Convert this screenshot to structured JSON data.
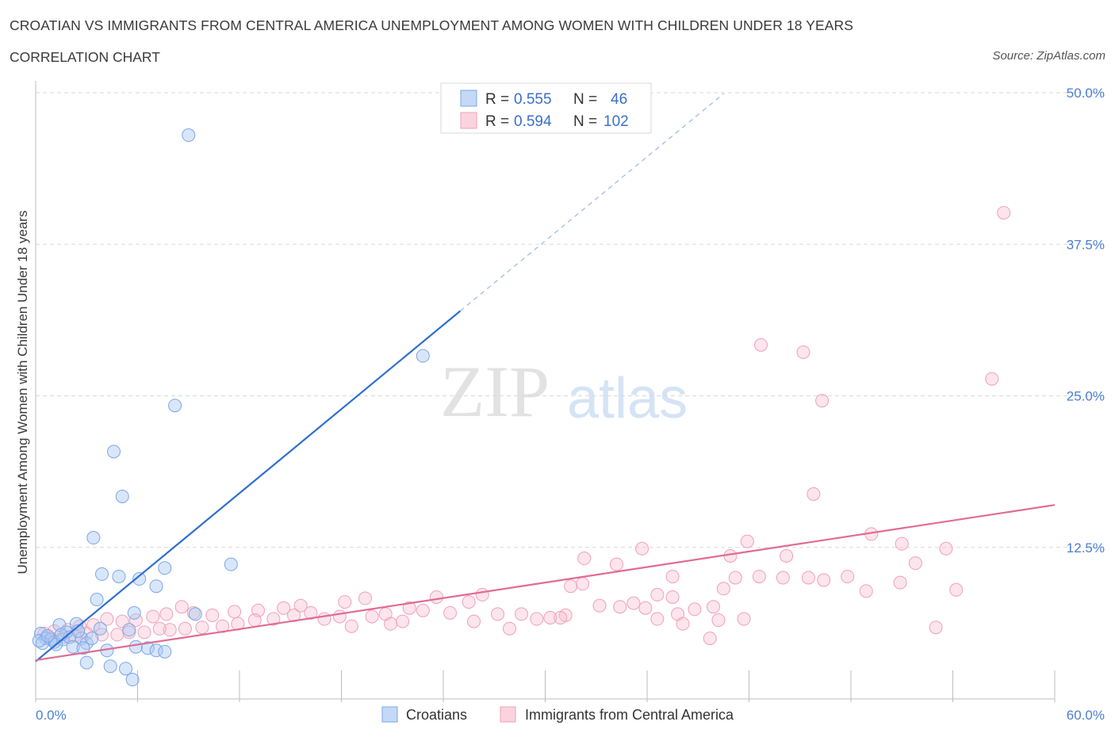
{
  "header": {
    "title": "CROATIAN VS IMMIGRANTS FROM CENTRAL AMERICA UNEMPLOYMENT AMONG WOMEN WITH CHILDREN UNDER 18 YEARS",
    "subtitle": "CORRELATION CHART",
    "source": "Source: ZipAtlas.com"
  },
  "watermark": {
    "zip": "ZIP",
    "atlas": "atlas"
  },
  "legend": {
    "rows": [
      {
        "r_label": "R = ",
        "r_value": "0.555",
        "n_label": "N = ",
        "n_value": "46",
        "color": "#7aa7e8"
      },
      {
        "r_label": "R = ",
        "r_value": "0.594",
        "n_label": "N = ",
        "n_value": "102",
        "color": "#f0a0b8"
      }
    ]
  },
  "colors": {
    "blue": "#7aa7e8",
    "blue_line": "#2f6fce",
    "pink": "#f0a0b8",
    "pink_line": "#e06b95",
    "grid": "#d9d9d9"
  },
  "chart_data": {
    "type": "scatter",
    "title": "CROATIAN VS IMMIGRANTS FROM CENTRAL AMERICA UNEMPLOYMENT AMONG WOMEN WITH CHILDREN UNDER 18 YEARS",
    "subtitle": "CORRELATION CHART",
    "xlabel": "",
    "ylabel": "Unemployment Among Women with Children Under 18 years",
    "xlim": [
      0,
      60
    ],
    "ylim": [
      0,
      50
    ],
    "x_tick_labels": [
      "0.0%",
      "60.0%"
    ],
    "y_tick_labels": [
      "12.5%",
      "25.0%",
      "37.5%",
      "50.0%"
    ],
    "y_tick_values": [
      12.5,
      25,
      37.5,
      50
    ],
    "legend_position": "bottom",
    "series": [
      {
        "name": "Croatians",
        "R": 0.555,
        "N": 46,
        "trend": {
          "x0": 0,
          "y0": 3.1,
          "x1": 25,
          "y1": 32.0,
          "dash_to_x": 40.5
        },
        "points": [
          [
            9.0,
            46.5
          ],
          [
            8.2,
            24.2
          ],
          [
            4.6,
            20.4
          ],
          [
            5.1,
            16.7
          ],
          [
            22.8,
            28.3
          ],
          [
            3.4,
            13.3
          ],
          [
            3.9,
            10.3
          ],
          [
            4.9,
            10.1
          ],
          [
            6.1,
            9.9
          ],
          [
            7.6,
            10.8
          ],
          [
            11.5,
            11.1
          ],
          [
            3.6,
            8.2
          ],
          [
            7.1,
            9.3
          ],
          [
            5.8,
            7.1
          ],
          [
            9.4,
            7.0
          ],
          [
            1.4,
            6.1
          ],
          [
            2.4,
            6.2
          ],
          [
            1.8,
            5.5
          ],
          [
            3.8,
            5.8
          ],
          [
            5.5,
            5.7
          ],
          [
            0.3,
            5.4
          ],
          [
            0.6,
            5.0
          ],
          [
            0.9,
            4.9
          ],
          [
            1.1,
            4.7
          ],
          [
            1.6,
            4.9
          ],
          [
            2.0,
            5.1
          ],
          [
            2.7,
            5.0
          ],
          [
            3.0,
            4.6
          ],
          [
            0.4,
            4.6
          ],
          [
            1.2,
            4.5
          ],
          [
            2.2,
            4.3
          ],
          [
            2.8,
            4.2
          ],
          [
            4.2,
            4.0
          ],
          [
            5.9,
            4.3
          ],
          [
            6.6,
            4.2
          ],
          [
            7.1,
            4.0
          ],
          [
            7.6,
            3.9
          ],
          [
            3.0,
            3.0
          ],
          [
            4.4,
            2.7
          ],
          [
            5.3,
            2.5
          ],
          [
            5.7,
            1.6
          ],
          [
            0.2,
            4.8
          ],
          [
            0.7,
            5.2
          ],
          [
            1.5,
            5.3
          ],
          [
            2.5,
            5.6
          ],
          [
            3.3,
            5.0
          ]
        ]
      },
      {
        "name": "Immigrants from Central America",
        "R": 0.594,
        "N": 102,
        "trend": {
          "x0": 0,
          "y0": 3.2,
          "x1": 60,
          "y1": 16.0
        },
        "points": [
          [
            57.0,
            40.1
          ],
          [
            42.7,
            29.2
          ],
          [
            45.2,
            28.6
          ],
          [
            56.3,
            26.4
          ],
          [
            46.3,
            24.6
          ],
          [
            45.8,
            16.9
          ],
          [
            49.2,
            13.6
          ],
          [
            41.9,
            13.0
          ],
          [
            35.7,
            12.4
          ],
          [
            44.2,
            11.8
          ],
          [
            40.9,
            11.8
          ],
          [
            51.0,
            12.8
          ],
          [
            53.6,
            12.4
          ],
          [
            51.8,
            11.2
          ],
          [
            34.2,
            11.1
          ],
          [
            32.3,
            11.6
          ],
          [
            37.5,
            10.1
          ],
          [
            41.2,
            10.0
          ],
          [
            42.6,
            10.1
          ],
          [
            44.0,
            10.0
          ],
          [
            45.5,
            10.0
          ],
          [
            46.4,
            9.8
          ],
          [
            47.8,
            10.1
          ],
          [
            50.9,
            9.6
          ],
          [
            54.2,
            9.0
          ],
          [
            40.5,
            9.1
          ],
          [
            48.9,
            8.9
          ],
          [
            31.5,
            9.3
          ],
          [
            32.2,
            9.5
          ],
          [
            36.6,
            8.6
          ],
          [
            37.5,
            8.4
          ],
          [
            26.3,
            8.6
          ],
          [
            25.5,
            8.0
          ],
          [
            23.6,
            8.4
          ],
          [
            19.4,
            8.3
          ],
          [
            18.2,
            8.0
          ],
          [
            15.6,
            7.7
          ],
          [
            14.6,
            7.5
          ],
          [
            13.1,
            7.3
          ],
          [
            11.7,
            7.2
          ],
          [
            10.4,
            6.9
          ],
          [
            9.3,
            7.1
          ],
          [
            8.6,
            7.6
          ],
          [
            7.7,
            7.0
          ],
          [
            6.9,
            6.8
          ],
          [
            5.9,
            6.5
          ],
          [
            5.1,
            6.4
          ],
          [
            4.2,
            6.6
          ],
          [
            3.4,
            6.1
          ],
          [
            2.6,
            6.0
          ],
          [
            1.9,
            5.7
          ],
          [
            1.1,
            5.6
          ],
          [
            0.5,
            5.4
          ],
          [
            24.4,
            7.1
          ],
          [
            22.8,
            7.3
          ],
          [
            22.0,
            7.5
          ],
          [
            20.6,
            7.0
          ],
          [
            19.8,
            6.8
          ],
          [
            17.9,
            6.8
          ],
          [
            17.0,
            6.6
          ],
          [
            16.2,
            7.1
          ],
          [
            15.2,
            6.9
          ],
          [
            14.0,
            6.6
          ],
          [
            12.9,
            6.5
          ],
          [
            11.9,
            6.2
          ],
          [
            11.0,
            6.0
          ],
          [
            9.8,
            5.9
          ],
          [
            8.8,
            5.8
          ],
          [
            7.9,
            5.7
          ],
          [
            7.3,
            5.8
          ],
          [
            6.4,
            5.5
          ],
          [
            5.5,
            5.5
          ],
          [
            4.8,
            5.3
          ],
          [
            3.9,
            5.3
          ],
          [
            3.0,
            5.4
          ],
          [
            2.3,
            5.2
          ],
          [
            1.6,
            5.1
          ],
          [
            0.9,
            5.0
          ],
          [
            27.2,
            7.0
          ],
          [
            28.6,
            7.0
          ],
          [
            29.5,
            6.6
          ],
          [
            30.3,
            6.7
          ],
          [
            31.2,
            6.9
          ],
          [
            33.2,
            7.7
          ],
          [
            34.4,
            7.6
          ],
          [
            35.2,
            7.9
          ],
          [
            35.9,
            7.5
          ],
          [
            37.8,
            7.0
          ],
          [
            38.8,
            7.4
          ],
          [
            39.9,
            7.6
          ],
          [
            25.8,
            6.4
          ],
          [
            27.9,
            5.8
          ],
          [
            30.9,
            6.7
          ],
          [
            36.6,
            6.6
          ],
          [
            38.1,
            6.2
          ],
          [
            40.2,
            6.5
          ],
          [
            41.7,
            6.6
          ],
          [
            39.7,
            5.0
          ],
          [
            53.0,
            5.9
          ],
          [
            18.6,
            6.0
          ],
          [
            20.9,
            6.2
          ],
          [
            21.6,
            6.4
          ]
        ]
      }
    ]
  }
}
